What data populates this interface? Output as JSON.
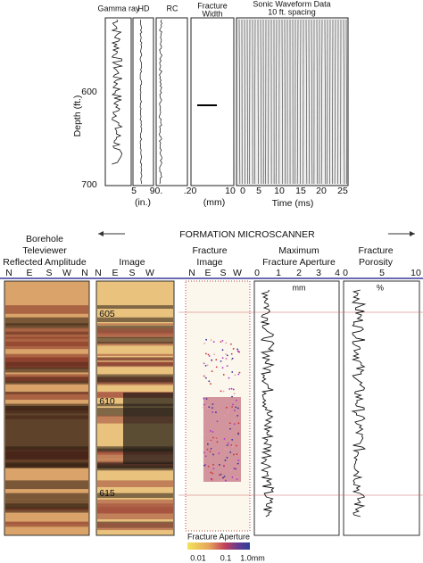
{
  "top_panel": {
    "y_axis_label": "Depth (ft.)",
    "depth_ticks": [
      600,
      700
    ],
    "tracks": [
      {
        "title": "Gamma ray"
      },
      {
        "title": "HD",
        "ticks": [
          "5"
        ],
        "unit": "(in.)"
      },
      {
        "title": "RC",
        "ticks": [
          "90."
        ]
      },
      {
        "title_lines": [
          "Fracture",
          "Width"
        ],
        "ticks": [
          ".20",
          "10"
        ],
        "unit": "(mm)"
      },
      {
        "title_lines": [
          "Sonic Waveform Data",
          "10 ft. spacing"
        ],
        "ticks": [
          0,
          5,
          10,
          15,
          20,
          25
        ],
        "unit": "Time (ms)"
      }
    ]
  },
  "bottom_panel": {
    "title": "FORMATION MICROSCANNER",
    "depth_ticks": [
      605,
      610,
      615
    ],
    "tracks": [
      {
        "title_lines": [
          "Borehole",
          "Televiewer",
          "Reflected Amplitude"
        ],
        "ticks": [
          "N",
          "E",
          "S",
          "W",
          "N"
        ]
      },
      {
        "title_lines": [
          "Image"
        ],
        "ticks": [
          "N",
          "E",
          "S",
          "W"
        ]
      },
      {
        "title_lines": [
          "Fracture",
          "Image"
        ],
        "ticks": [
          "N",
          "E",
          "S",
          "W"
        ]
      },
      {
        "title_lines": [
          "Maximum",
          "Fracture Aperture"
        ],
        "ticks": [
          0,
          1,
          2,
          3,
          4
        ],
        "unit": "mm"
      },
      {
        "title_lines": [
          "Fracture",
          "Porosity"
        ],
        "ticks": [
          0,
          5,
          10
        ],
        "unit": "%"
      }
    ],
    "colorbar": {
      "title": "Fracture Aperture",
      "ticks": [
        "0.01",
        "0.1",
        "1.0mm"
      ]
    }
  }
}
